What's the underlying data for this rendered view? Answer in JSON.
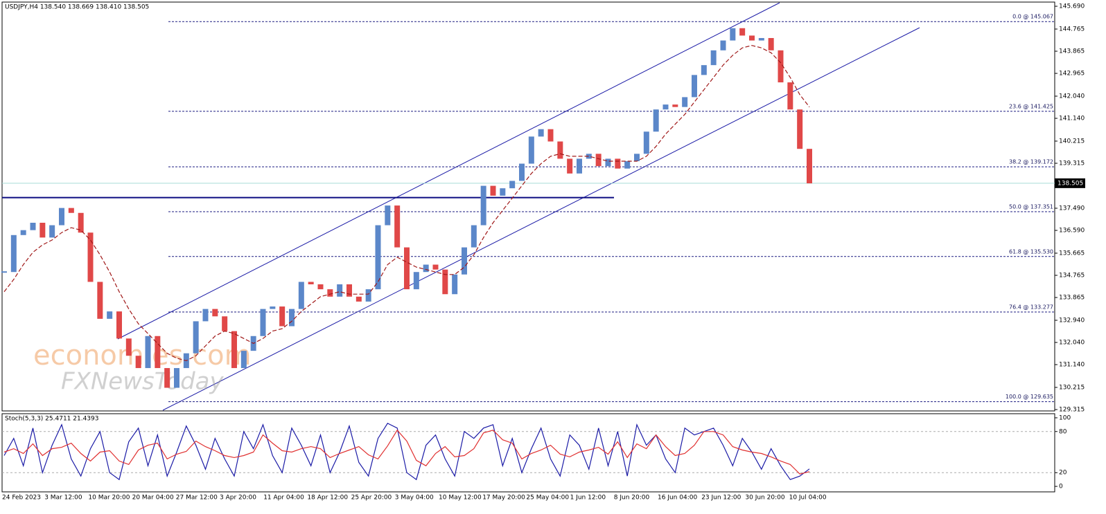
{
  "chart_data": {
    "type": "candlestick",
    "title": "USDJPY,H4  138.540 138.669 138.410 138.505",
    "up_color": "#5b87c9",
    "down_color": "#e04848",
    "x_labels": [
      "24 Feb 2023",
      "3 Mar 12:00",
      "10 Mar 20:00",
      "20 Mar 04:00",
      "27 Mar 12:00",
      "3 Apr 20:00",
      "11 Apr 04:00",
      "18 Apr 12:00",
      "25 Apr 20:00",
      "3 May 04:00",
      "10 May 12:00",
      "17 May 20:00",
      "25 May 04:00",
      "1 Jun 12:00",
      "8 Jun 20:00",
      "16 Jun 04:00",
      "23 Jun 12:00",
      "30 Jun 20:00",
      "10 Jul 04:00"
    ],
    "values": [
      134.9,
      136.4,
      136.6,
      136.9,
      136.3,
      136.8,
      137.5,
      137.3,
      136.5,
      134.5,
      133.0,
      133.3,
      132.2,
      131.5,
      131.0,
      132.3,
      131.0,
      130.2,
      131.0,
      131.6,
      132.9,
      133.4,
      133.1,
      132.5,
      131.0,
      131.7,
      132.3,
      133.4,
      133.5,
      132.7,
      133.4,
      134.5,
      134.4,
      134.2,
      133.9,
      134.4,
      133.9,
      133.7,
      134.2,
      136.8,
      137.6,
      135.9,
      134.2,
      134.9,
      135.2,
      135.0,
      134.0,
      134.8,
      135.9,
      136.8,
      138.4,
      138.0,
      138.3,
      138.6,
      139.3,
      140.4,
      140.7,
      140.2,
      139.5,
      138.9,
      139.5,
      139.7,
      139.2,
      139.5,
      139.1,
      139.4,
      139.7,
      140.6,
      141.5,
      141.7,
      141.6,
      142.0,
      142.9,
      143.3,
      143.9,
      144.3,
      144.8,
      144.5,
      144.3,
      144.4,
      143.9,
      142.6,
      141.5,
      139.9,
      138.5
    ],
    "ma": {
      "color": "#a01818",
      "values": [
        134.1,
        134.6,
        135.2,
        135.7,
        136.0,
        136.2,
        136.5,
        136.7,
        136.6,
        136.2,
        135.6,
        134.9,
        134.1,
        133.4,
        132.8,
        132.4,
        132.0,
        131.6,
        131.4,
        131.3,
        131.5,
        131.9,
        132.3,
        132.5,
        132.4,
        132.2,
        132.0,
        132.2,
        132.5,
        132.6,
        132.9,
        133.3,
        133.6,
        133.9,
        134.0,
        134.1,
        134.0,
        134.0,
        134.0,
        134.5,
        135.2,
        135.5,
        135.3,
        135.1,
        135.0,
        134.9,
        134.8,
        134.8,
        135.1,
        135.6,
        136.3,
        136.9,
        137.4,
        137.9,
        138.4,
        138.9,
        139.3,
        139.6,
        139.7,
        139.6,
        139.6,
        139.6,
        139.5,
        139.4,
        139.4,
        139.4,
        139.4,
        139.6,
        140.0,
        140.5,
        140.9,
        141.3,
        141.8,
        142.3,
        142.8,
        143.3,
        143.7,
        144.0,
        144.1,
        144.0,
        143.8,
        143.4,
        142.8,
        142.1,
        141.6
      ]
    },
    "ylim": [
      129.26,
      145.86
    ],
    "yticks": [
      {
        "value": 145.69,
        "label": "145.690"
      },
      144.765,
      143.865,
      142.965,
      {
        "value": 142.04,
        "label": "142.040"
      },
      {
        "value": 141.14,
        "label": "141.140"
      },
      140.215,
      139.315,
      {
        "value": 137.49,
        "label": "137.490"
      },
      {
        "value": 136.59,
        "label": "136.590"
      },
      135.665,
      134.765,
      133.865,
      {
        "value": 132.94,
        "label": "132.940"
      },
      {
        "value": 132.04,
        "label": "132.040"
      },
      {
        "value": 131.14,
        "label": "131.140"
      },
      130.215,
      129.315
    ],
    "last_price": 138.505,
    "hline": 137.92,
    "fib_levels": [
      {
        "value": 145.067,
        "label": "0.0 @ 145.067"
      },
      {
        "value": 141.425,
        "label": "23.6 @ 141.425"
      },
      {
        "value": 139.172,
        "label": "38.2 @ 139.172"
      },
      {
        "value": 137.351,
        "label": "50.0 @ 137.351"
      },
      {
        "value": 135.53,
        "label": "61.8 @ 135.530"
      },
      {
        "value": 133.277,
        "label": "76.4 @ 133.277"
      },
      {
        "value": 129.635,
        "label": "100.0 @ 129.635"
      }
    ],
    "watermark": [
      "economies.com",
      "FXNewsToday"
    ],
    "stochastic": {
      "title": "Stoch(5,3,3) 25.4711 21.4393",
      "ylim": [
        -8,
        106
      ],
      "yticks": [
        0,
        20,
        80,
        100
      ],
      "series": [
        {
          "color": "#1a1aa6",
          "values": [
            45,
            70,
            30,
            85,
            20,
            60,
            90,
            40,
            15,
            55,
            80,
            20,
            10,
            65,
            85,
            30,
            75,
            15,
            50,
            88,
            60,
            25,
            70,
            40,
            15,
            80,
            55,
            90,
            45,
            20,
            85,
            60,
            30,
            75,
            20,
            50,
            88,
            35,
            15,
            70,
            92,
            85,
            20,
            10,
            60,
            75,
            40,
            15,
            80,
            70,
            85,
            90,
            30,
            70,
            20,
            55,
            85,
            40,
            15,
            75,
            60,
            25,
            85,
            30,
            80,
            15,
            90,
            60,
            75,
            40,
            20,
            85,
            75,
            80,
            85,
            60,
            30,
            70,
            50,
            25,
            55,
            30,
            10,
            15,
            25.4711
          ]
        },
        {
          "color": "#e03030",
          "values": [
            50,
            55,
            48,
            62,
            45,
            55,
            57,
            63,
            48,
            37,
            50,
            52,
            37,
            32,
            53,
            60,
            63,
            40,
            47,
            51,
            66,
            58,
            52,
            45,
            42,
            45,
            50,
            75,
            63,
            52,
            50,
            55,
            58,
            55,
            42,
            48,
            53,
            58,
            46,
            40,
            59,
            82,
            66,
            38,
            30,
            48,
            58,
            43,
            45,
            55,
            78,
            82,
            68,
            63,
            40,
            48,
            53,
            60,
            47,
            43,
            50,
            53,
            57,
            47,
            65,
            42,
            62,
            55,
            75,
            58,
            45,
            48,
            60,
            80,
            80,
            75,
            58,
            53,
            50,
            48,
            43,
            37,
            32,
            18,
            21.4393
          ]
        }
      ]
    }
  }
}
